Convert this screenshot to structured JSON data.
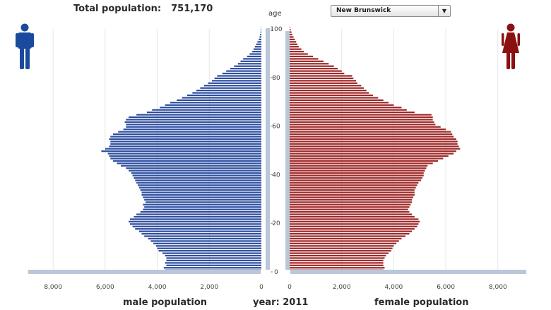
{
  "header": {
    "population_label": "Total population:",
    "population_value": "751,170",
    "age_axis_label": "age"
  },
  "region_select": {
    "selected": "New Brunswick",
    "arrow": "▼"
  },
  "icons": {
    "male": "male-person-icon",
    "female": "female-person-icon"
  },
  "footer": {
    "male_label": "male population",
    "year_label": "year: 2011",
    "female_label": "female population"
  },
  "colors": {
    "male": "#2f4fa0",
    "female": "#a02a2a",
    "male_icon": "#1a4a9e",
    "female_icon": "#8b1010"
  },
  "chart_data": {
    "type": "bar",
    "orientation": "horizontal-pyramid",
    "x_range": [
      0,
      9000
    ],
    "y_range": [
      0,
      100
    ],
    "age_ticks": [
      "0",
      "20",
      "40",
      "60",
      "80",
      "100"
    ],
    "population_ticks": [
      "0",
      "2,000",
      "4,000",
      "6,000",
      "8,000"
    ],
    "grid": true,
    "series": [
      {
        "name": "male population",
        "ages": [
          0,
          1,
          2,
          3,
          4,
          5,
          6,
          7,
          8,
          9,
          10,
          11,
          12,
          13,
          14,
          15,
          16,
          17,
          18,
          19,
          20,
          21,
          22,
          23,
          24,
          25,
          26,
          27,
          28,
          29,
          30,
          31,
          32,
          33,
          34,
          35,
          36,
          37,
          38,
          39,
          40,
          41,
          42,
          43,
          44,
          45,
          46,
          47,
          48,
          49,
          50,
          51,
          52,
          53,
          54,
          55,
          56,
          57,
          58,
          59,
          60,
          61,
          62,
          63,
          64,
          65,
          66,
          67,
          68,
          69,
          70,
          71,
          72,
          73,
          74,
          75,
          76,
          77,
          78,
          79,
          80,
          81,
          82,
          83,
          84,
          85,
          86,
          87,
          88,
          89,
          90,
          91,
          92,
          93,
          94,
          95,
          96,
          97,
          98,
          99,
          100
        ],
        "values": [
          3700,
          3750,
          3650,
          3700,
          3650,
          3650,
          3700,
          3800,
          3950,
          4000,
          4050,
          4150,
          4250,
          4350,
          4500,
          4600,
          4700,
          4850,
          4950,
          5050,
          5100,
          5050,
          4900,
          4800,
          4650,
          4550,
          4500,
          4550,
          4450,
          4500,
          4550,
          4600,
          4600,
          4650,
          4700,
          4750,
          4800,
          4850,
          4900,
          4950,
          5000,
          5100,
          5200,
          5400,
          5550,
          5700,
          5800,
          5850,
          5900,
          6150,
          6000,
          5850,
          5800,
          5800,
          5850,
          5800,
          5700,
          5500,
          5300,
          5200,
          5200,
          5250,
          5200,
          5100,
          4800,
          4400,
          4200,
          3900,
          3700,
          3500,
          3250,
          3050,
          2850,
          2650,
          2500,
          2350,
          2200,
          2050,
          1900,
          1800,
          1700,
          1500,
          1350,
          1200,
          1050,
          900,
          800,
          700,
          550,
          450,
          350,
          300,
          250,
          200,
          150,
          100,
          70,
          50,
          30,
          20,
          10
        ]
      },
      {
        "name": "female population",
        "ages": [
          0,
          1,
          2,
          3,
          4,
          5,
          6,
          7,
          8,
          9,
          10,
          11,
          12,
          13,
          14,
          15,
          16,
          17,
          18,
          19,
          20,
          21,
          22,
          23,
          24,
          25,
          26,
          27,
          28,
          29,
          30,
          31,
          32,
          33,
          34,
          35,
          36,
          37,
          38,
          39,
          40,
          41,
          42,
          43,
          44,
          45,
          46,
          47,
          48,
          49,
          50,
          51,
          52,
          53,
          54,
          55,
          56,
          57,
          58,
          59,
          60,
          61,
          62,
          63,
          64,
          65,
          66,
          67,
          68,
          69,
          70,
          71,
          72,
          73,
          74,
          75,
          76,
          77,
          78,
          79,
          80,
          81,
          82,
          83,
          84,
          85,
          86,
          87,
          88,
          89,
          90,
          91,
          92,
          93,
          94,
          95,
          96,
          97,
          98,
          99,
          100
        ],
        "values": [
          3600,
          3650,
          3600,
          3600,
          3600,
          3650,
          3700,
          3800,
          3900,
          3950,
          4000,
          4100,
          4200,
          4300,
          4450,
          4600,
          4700,
          4800,
          4900,
          4950,
          5000,
          4950,
          4800,
          4700,
          4600,
          4550,
          4600,
          4650,
          4700,
          4700,
          4750,
          4800,
          4800,
          4800,
          4850,
          4900,
          4950,
          5050,
          5100,
          5150,
          5150,
          5200,
          5250,
          5300,
          5500,
          5700,
          5900,
          6100,
          6300,
          6400,
          6550,
          6500,
          6450,
          6450,
          6400,
          6300,
          6250,
          6200,
          6000,
          5800,
          5600,
          5550,
          5500,
          5500,
          5450,
          4800,
          4500,
          4300,
          4000,
          3800,
          3600,
          3400,
          3200,
          3050,
          2950,
          2850,
          2750,
          2600,
          2550,
          2450,
          2400,
          2100,
          2000,
          1850,
          1700,
          1500,
          1300,
          1100,
          900,
          700,
          550,
          450,
          350,
          300,
          250,
          200,
          150,
          100,
          70,
          40,
          20
        ]
      }
    ]
  }
}
